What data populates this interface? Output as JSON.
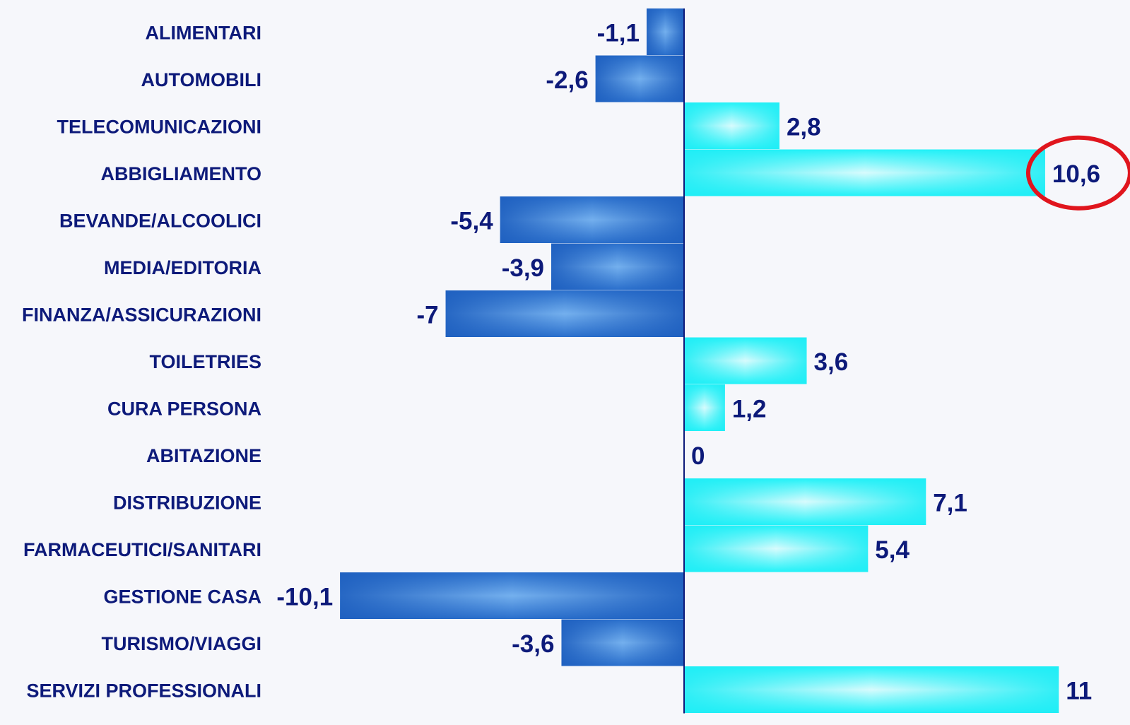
{
  "chart_data": {
    "type": "bar",
    "orientation": "horizontal",
    "categories": [
      "ALIMENTARI",
      "AUTOMOBILI",
      "TELECOMUNICAZIONI",
      "ABBIGLIAMENTO",
      "BEVANDE/ALCOOLICI",
      "MEDIA/EDITORIA",
      "FINANZA/ASSICURAZIONI",
      "TOILETRIES",
      "CURA PERSONA",
      "ABITAZIONE",
      "DISTRIBUZIONE",
      "FARMACEUTICI/SANITARI",
      "GESTIONE CASA",
      "TURISMO/VIAGGI",
      "SERVIZI PROFESSIONALI"
    ],
    "values": [
      -1.1,
      -2.6,
      2.8,
      10.6,
      -5.4,
      -3.9,
      -7,
      3.6,
      1.2,
      0,
      7.1,
      5.4,
      -10.1,
      -3.6,
      11
    ],
    "value_labels": [
      "-1,1",
      "-2,6",
      "2,8",
      "10,6",
      "-5,4",
      "-3,9",
      "-7",
      "3,6",
      "1,2",
      "0",
      "7,1",
      "5,4",
      "-10,1",
      "-3,6",
      "11"
    ],
    "title": "",
    "xlabel": "",
    "ylabel": "",
    "xlim": [
      -10.1,
      11
    ],
    "grid": false,
    "legend": "none",
    "highlighted_category": "ABBIGLIAMENTO",
    "colors": {
      "negative": "#2266c8",
      "positive": "#22f2f8",
      "axis": "#0d1a7a",
      "text": "#0d1a7a",
      "highlight_ring": "#e0151d"
    }
  }
}
